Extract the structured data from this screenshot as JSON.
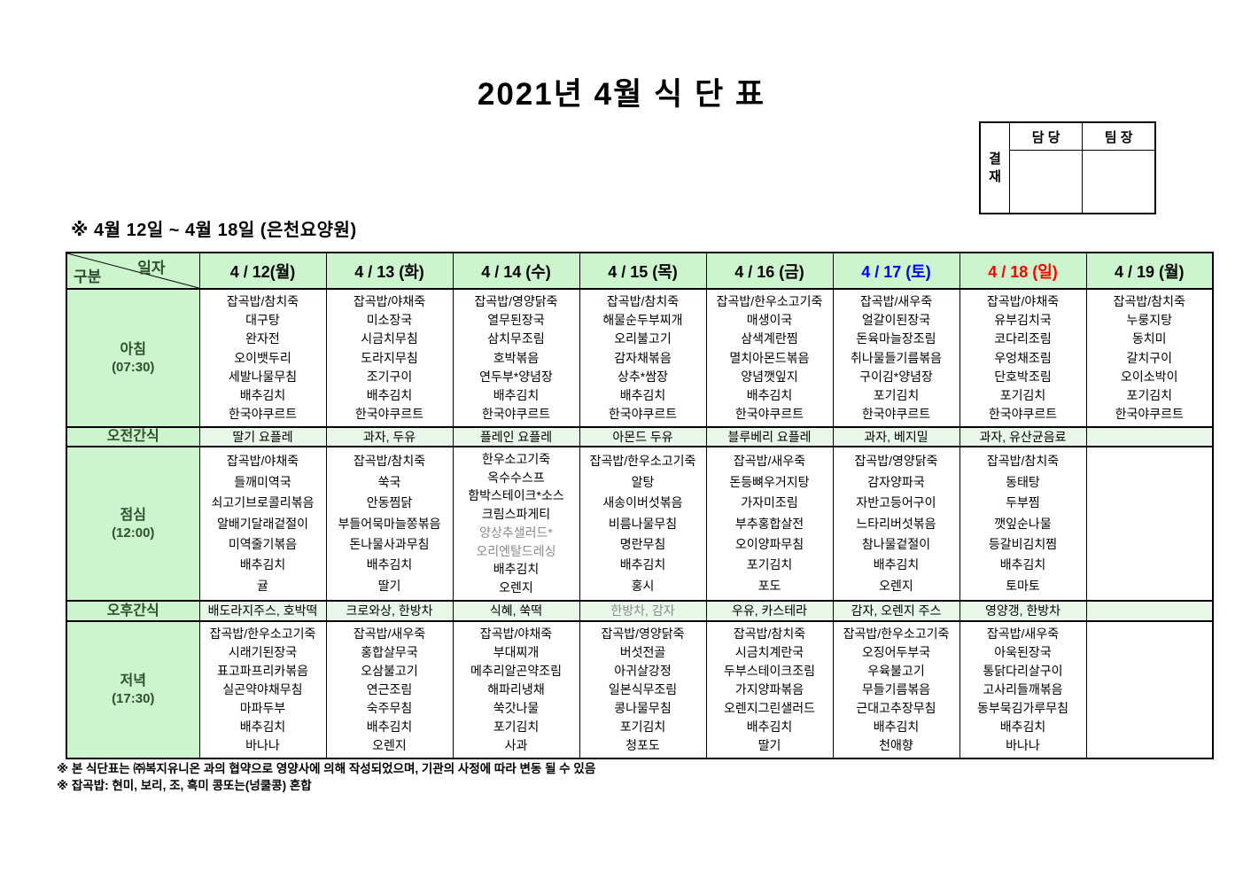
{
  "title": "2021년 4월 식 단 표",
  "approval": {
    "label_chars": [
      "결",
      "재"
    ],
    "col1": "담 당",
    "col2": "팀 장"
  },
  "subtitle": "※ 4월 12일 ~ 4월 18일 (은천요양원)",
  "colors": {
    "header_bg": "#cdf5cd",
    "snack_row_bg": "#e9f7e9",
    "saturday_text": "#0000ff",
    "sunday_text": "#ff0000",
    "muted_text": "#8a8a8a",
    "label_text": "#2f4f2f",
    "border": "#000000"
  },
  "table": {
    "corner": {
      "top": "일자",
      "bottom": "구분"
    },
    "dates": [
      {
        "label": "4 / 12(월)",
        "color": "#000000"
      },
      {
        "label": "4 / 13 (화)",
        "color": "#000000"
      },
      {
        "label": "4 / 14 (수)",
        "color": "#000000"
      },
      {
        "label": "4 / 15 (목)",
        "color": "#000000"
      },
      {
        "label": "4 / 16 (금)",
        "color": "#000000"
      },
      {
        "label": "4 / 17 (토)",
        "color": "#0000ff"
      },
      {
        "label": "4 / 18 (일)",
        "color": "#ff0000"
      },
      {
        "label": "4 / 19 (월)",
        "color": "#000000"
      }
    ],
    "rows": {
      "breakfast": {
        "label": "아침",
        "time": "(07:30)",
        "cells": [
          [
            "잡곡밥/참치죽",
            "대구탕",
            "완자전",
            "오이뱃두리",
            "세발나물무침",
            "배추김치",
            "한국야쿠르트"
          ],
          [
            "잡곡밥/야채죽",
            "미소장국",
            "시금치무침",
            "도라지무침",
            "조기구이",
            "배추김치",
            "한국야쿠르트"
          ],
          [
            "잡곡밥/영양닭죽",
            "열무된장국",
            "삼치무조림",
            "호박볶음",
            "연두부*양념장",
            "배추김치",
            "한국야쿠르트"
          ],
          [
            "잡곡밥/참치죽",
            "해물순두부찌개",
            "오리불고기",
            "감자채볶음",
            "상추*쌈장",
            "배추김치",
            "한국야쿠르트"
          ],
          [
            "잡곡밥/한우소고기죽",
            "매생이국",
            "삼색계란찜",
            "멸치아몬드볶음",
            "양념깻잎지",
            "배추김치",
            "한국야쿠르트"
          ],
          [
            "잡곡밥/새우죽",
            "얼갈이된장국",
            "돈육마늘장조림",
            "취나물들기름볶음",
            "구이김*양념장",
            "포기김치",
            "한국야쿠르트"
          ],
          [
            "잡곡밥/야채죽",
            "유부김치국",
            "코다리조림",
            "우엉채조림",
            "단호박조림",
            "포기김치",
            "한국야쿠르트"
          ],
          [
            "잡곡밥/참치죽",
            "누룽지탕",
            "동치미",
            "갈치구이",
            "오이소박이",
            "포기김치",
            "한국야쿠르트"
          ]
        ]
      },
      "am_snack": {
        "label": "오전간식",
        "cells": [
          [
            "딸기 요플레"
          ],
          [
            "과자, 두유"
          ],
          [
            "플레인 요플레"
          ],
          [
            "아몬드 두유"
          ],
          [
            "블루베리 요플레"
          ],
          [
            "과자, 베지밀"
          ],
          [
            "과자, 유산균음료"
          ],
          []
        ]
      },
      "lunch": {
        "label": "점심",
        "time": "(12:00)",
        "cells": [
          [
            "잡곡밥/야채죽",
            "들깨미역국",
            "쇠고기브로콜리볶음",
            "알배기달래겉절이",
            "미역줄기볶음",
            "배추김치",
            "귤"
          ],
          [
            "잡곡밥/참치죽",
            "쑥국",
            "안동찜닭",
            "부들어묵마늘쫑볶음",
            "돈나물사과무침",
            "배추김치",
            "딸기"
          ],
          [
            "한우소고기죽",
            "옥수수스프",
            "함박스테이크*소스",
            "크림스파게티",
            {
              "text": "양상추샐러드*",
              "muted": true
            },
            {
              "text": "오리엔탈드레싱",
              "muted": true
            },
            "배추김치",
            "오렌지"
          ],
          [
            "잡곡밥/한우소고기죽",
            "알탕",
            "새송이버섯볶음",
            "비름나물무침",
            "명란무침",
            "배추김치",
            "홍시"
          ],
          [
            "잡곡밥/새우죽",
            "돈등뼈우거지탕",
            "가자미조림",
            "부추홍합살전",
            "오이양파무침",
            "포기김치",
            "포도"
          ],
          [
            "잡곡밥/영양닭죽",
            "감자양파국",
            "자반고등어구이",
            "느타리버섯볶음",
            "참나물겉절이",
            "배추김치",
            "오렌지"
          ],
          [
            "잡곡밥/참치죽",
            "동태탕",
            "두부찜",
            "깻잎순나물",
            "등갈비김치찜",
            "배추김치",
            "토마토"
          ],
          []
        ]
      },
      "pm_snack": {
        "label": "오후간식",
        "cells": [
          [
            "배도라지주스, 호박떡"
          ],
          [
            "크로와상, 한방차"
          ],
          [
            "식혜, 쑥떡"
          ],
          [
            {
              "text": "한방차, 감자",
              "muted": true
            }
          ],
          [
            "우유, 카스테라"
          ],
          [
            "감자, 오렌지 주스"
          ],
          [
            "영양갱, 한방차"
          ],
          []
        ]
      },
      "dinner": {
        "label": "저녁",
        "time": "(17:30)",
        "cells": [
          [
            "잡곡밥/한우소고기죽",
            "시래기된장국",
            "표고파프리카볶음",
            "실곤약야채무침",
            "마파두부",
            "배추김치",
            "바나나"
          ],
          [
            "잡곡밥/새우죽",
            "홍합살무국",
            "오삼불고기",
            "연근조림",
            "숙주무침",
            "배추김치",
            "오렌지"
          ],
          [
            "잡곡밥/야채죽",
            "부대찌개",
            "메추리알곤약조림",
            "해파리냉채",
            "쑥갓나물",
            "포기김치",
            "사과"
          ],
          [
            "잡곡밥/영양닭죽",
            "버섯전골",
            "아귀살강정",
            "일본식무조림",
            "콩나물무침",
            "포기김치",
            "청포도"
          ],
          [
            "잡곡밥/참치죽",
            "시금치계란국",
            "두부스테이크조림",
            "가지양파볶음",
            "오렌지그린샐러드",
            "배추김치",
            "딸기"
          ],
          [
            "잡곡밥/한우소고기죽",
            "오징어두부국",
            "우육불고기",
            "무들기름볶음",
            "근대고추장무침",
            "배추김치",
            "천애향"
          ],
          [
            "잡곡밥/새우죽",
            "아욱된장국",
            "통닭다리살구이",
            "고사리들깨볶음",
            "동부묵김가루무침",
            "배추김치",
            "바나나"
          ],
          []
        ]
      }
    }
  },
  "footnotes": [
    "※ 본 식단표는 ㈜복지유니온 과의 협약으로 영양사에 의해 작성되었으며, 기관의 사정에 따라 변동 될 수 있음",
    "※ 잡곡밥: 현미, 보리, 조, 흑미 콩또는(넝쿨콩) 혼합"
  ]
}
